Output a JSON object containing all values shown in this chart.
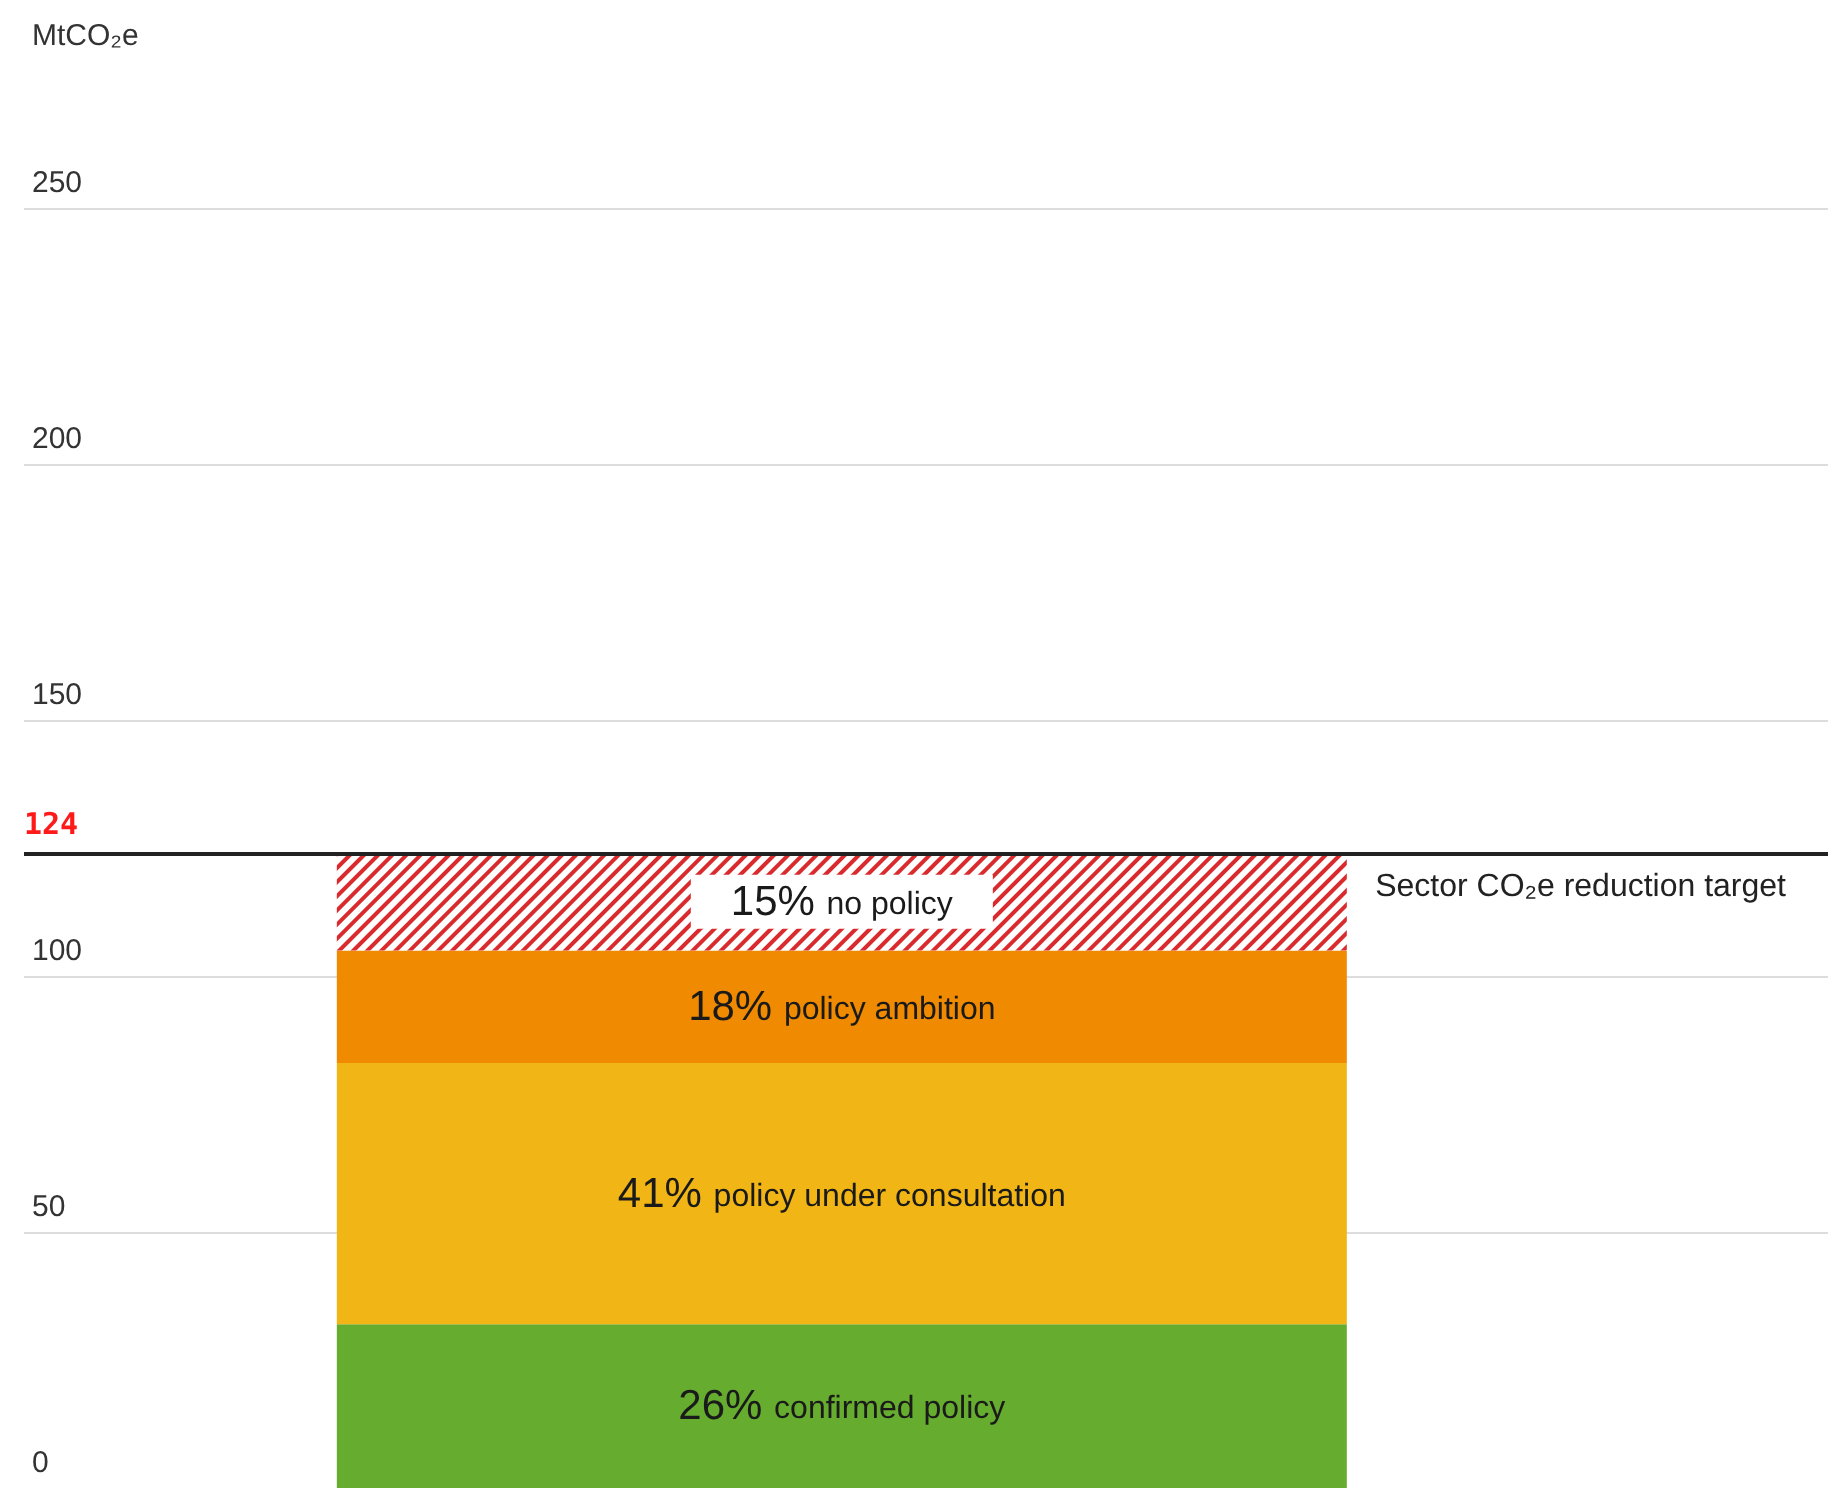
{
  "chart_data": {
    "type": "bar",
    "ylabel": "MtCO₂e",
    "categories": [
      null
    ],
    "stacked": true,
    "series": [
      {
        "name": "26% confirmed policy",
        "color": "#66ac2f",
        "values": [
          32
        ]
      },
      {
        "name": "41% policy under consultation",
        "color": "#f1b515",
        "values": [
          51
        ]
      },
      {
        "name": "18% policy ambition",
        "color": "#f08a00",
        "values": [
          22
        ]
      },
      {
        "name": "15% no policy",
        "color": "#d92b2e",
        "values": [
          19
        ]
      }
    ],
    "ylim": [
      0,
      250
    ],
    "yticks": [
      0,
      50,
      100,
      150,
      200,
      250
    ],
    "grid": "y",
    "legend": false,
    "ref_lines": [
      {
        "axis": "y",
        "value": 124,
        "label": "Sector CO₂e reduction target",
        "color": "#222222"
      }
    ],
    "annotations": [
      {
        "text": "124",
        "y": 124
      }
    ]
  }
}
